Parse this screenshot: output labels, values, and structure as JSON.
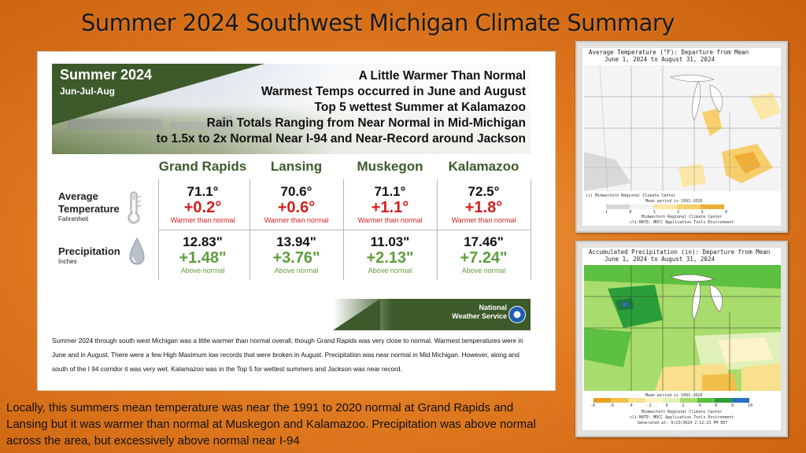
{
  "slide_title": "Summer 2024 Southwest Michigan Climate Summary",
  "infographic": {
    "season": "Summer 2024",
    "months": "Jun-Jul-Aug",
    "headlines": [
      "A Little Warmer Than Normal",
      "Warmest Temps occurred in June and August",
      "Top 5 wettest Summer at Kalamazoo",
      "Rain Totals Ranging from Near Normal in Mid-Michigan",
      "to 1.5x to 2x Normal Near I-94 and Near-Record around Jackson"
    ],
    "columns": [
      "Grand Rapids",
      "Lansing",
      "Muskegon",
      "Kalamazoo"
    ],
    "temperature_row": {
      "label_line1": "Average",
      "label_line2": "Temperature",
      "unit": "Fahrenheit",
      "values": [
        "71.1°",
        "70.6°",
        "71.1°",
        "72.5°"
      ],
      "departures": [
        "+0.2°",
        "+0.6°",
        "+1.1°",
        "+1.8°"
      ],
      "notes": [
        "Warmer than normal",
        "Warmer than normal",
        "Warmer than normal",
        "Warmer than normal"
      ]
    },
    "precip_row": {
      "label": "Precipitation",
      "unit": "Inches",
      "values": [
        "12.83\"",
        "13.94\"",
        "11.03\"",
        "17.46\""
      ],
      "departures": [
        "+1.48\"",
        "+3.76\"",
        "+2.13\"",
        "+7.24\""
      ],
      "notes": [
        "Above normal",
        "Above normal",
        "Above normal",
        "Above normal"
      ]
    },
    "nws_line1": "National",
    "nws_line2": "Weather Service",
    "body_text": "Summer 2024 through south west Michigan was a little warmer than normal overall, though Grand Rapids was very close to normal. Warmest temperatures were in June and in August. There were a few High Maximum low records that were broken in August. Precipitation was near normal in Mid Michigan. However, along and south of the I 94 corridor it was very wet. Kalamazoo was in the Top 5 for wettest summers and Jackson was near record.",
    "icons": [
      "thermometer-icon",
      "raindrop-icon",
      "noaa-logo"
    ]
  },
  "bottom_text": "Locally, this summers mean temperature was near the 1991 to 2020 normal at Grand Rapids and Lansing but it was warmer than normal at Muskegon and Kalamazoo. Precipitation was above normal across the area, but excessively above normal near I-94",
  "temp_map": {
    "title_line1": "Average Temperature (°F): Departure from Mean",
    "title_line2": "June 1, 2024 to August 31, 2024",
    "credit": "(c) Midwestern Regional Climate Center",
    "mean_period": "Mean period is 1991-2020",
    "footer_line1": "Midwestern Regional Climate Center",
    "footer_line2": "cli-MATE: MRCC Application Tools Environment",
    "legend_labels": [
      "-1",
      "0",
      "1",
      "2",
      "3",
      "4"
    ],
    "legend_colors": [
      "#d8d8d8",
      "#f2f2f2",
      "#fbe7a8",
      "#f7cf6a",
      "#efae3a",
      "#e58a24"
    ]
  },
  "precip_map": {
    "title_line1": "Accumulated Precipitation (in): Departure from Mean",
    "title_line2": "June 1, 2024 to August 31, 2024",
    "mean_period": "Mean period is 1991-2020",
    "footer_line1": "Midwestern Regional Climate Center",
    "footer_line2": "cli-MATE: MRCC Application Tools Environment",
    "footer_line3": "Generated at: 9/23/2024 2:12:23 PM EDT",
    "legend_labels": [
      "-8",
      "-6",
      "-4",
      "-2",
      "0",
      "2",
      "4",
      "6",
      "8",
      "10"
    ],
    "legend_colors": [
      "#e8a020",
      "#f0c048",
      "#f8e08c",
      "#fdf3c8",
      "#dff0b8",
      "#a8dc6c",
      "#5cc040",
      "#2a9e3a",
      "#1e7a40",
      "#2f6fc2"
    ]
  }
}
